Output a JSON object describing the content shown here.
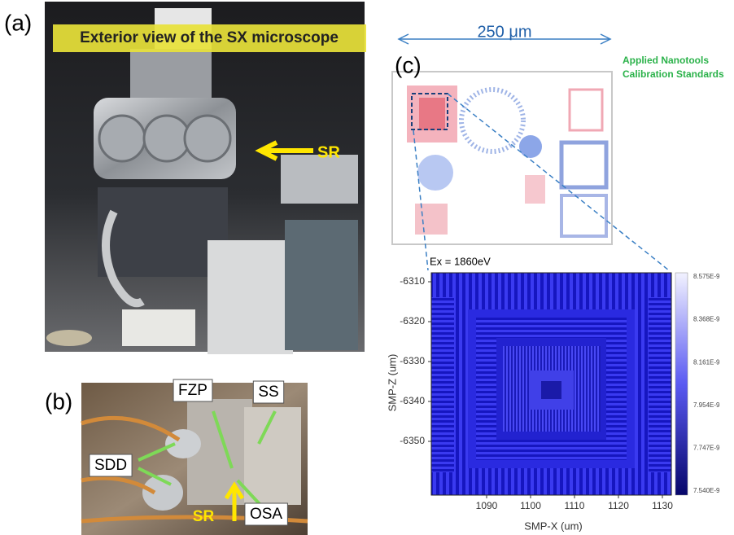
{
  "panel_a": {
    "label": "(a)",
    "title": "Exterior view of the SX microscope",
    "beam_label": "SR"
  },
  "panel_b": {
    "label": "(b)",
    "annotations": [
      "FZP",
      "SS",
      "SDD",
      "SR",
      "OSA"
    ]
  },
  "panel_c": {
    "label": "(c)",
    "scale_label": "250 μm",
    "source": [
      "Applied Nanotools",
      "Calibration Standards"
    ],
    "image": {
      "energy": "Ex = 1860eV",
      "x_label": "SMP-X (um)",
      "y_label": "SMP-Z (um)",
      "xticks": [
        "1090",
        "1100",
        "1110",
        "1120",
        "1130"
      ],
      "yticks": [
        "-6310",
        "-6320",
        "-6330",
        "-6340",
        "-6350"
      ],
      "colorbar_ticks": [
        "8.575E-9",
        "8.368E-9",
        "8.161E-9",
        "7.954E-9",
        "7.747E-9",
        "7.540E-9"
      ]
    }
  }
}
